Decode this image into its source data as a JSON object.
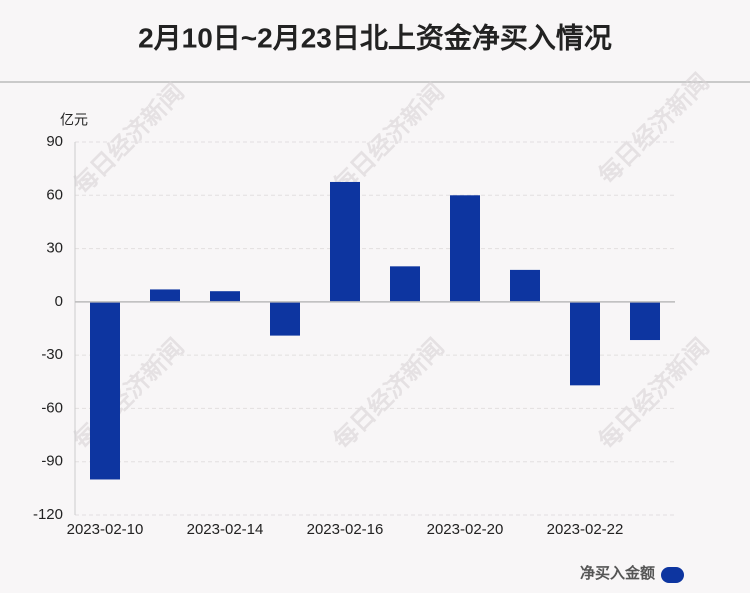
{
  "chart_data": {
    "type": "bar",
    "title": "2月10日~2月23日北上资金净买入情况",
    "y_unit": "亿元",
    "watermark": "每日经济新闻",
    "categories": [
      "2023-02-10",
      null,
      "2023-02-14",
      null,
      "2023-02-16",
      null,
      "2023-02-20",
      null,
      "2023-02-22",
      null
    ],
    "series": [
      {
        "name": "净买入金额",
        "color": "#0d35a0",
        "values": [
          -100,
          7,
          6,
          -19,
          67.5,
          20,
          60,
          18,
          -47,
          -21.5
        ]
      }
    ],
    "ylim": [
      -120,
      90
    ],
    "yticks": [
      90,
      60,
      30,
      0,
      -30,
      -60,
      -90,
      -120
    ],
    "grid": true,
    "legend": "bottom-right"
  }
}
